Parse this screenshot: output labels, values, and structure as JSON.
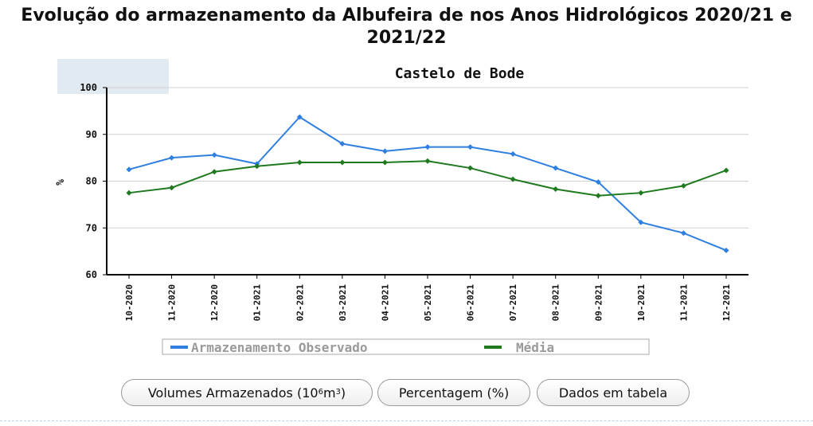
{
  "page": {
    "title": "Evolução do armazenamento da Albufeira de nos Anos Hidrológicos 2020/21 e 2021/22"
  },
  "chart_data": {
    "type": "line",
    "title": "Castelo de Bode",
    "ylabel": "%",
    "xlabel": "",
    "ylim": [
      60,
      100
    ],
    "yticks": [
      60,
      70,
      80,
      90,
      100
    ],
    "grid": true,
    "legend_position": "bottom",
    "categories": [
      "10-2020",
      "11-2020",
      "12-2020",
      "01-2021",
      "02-2021",
      "03-2021",
      "04-2021",
      "05-2021",
      "06-2021",
      "07-2021",
      "08-2021",
      "09-2021",
      "10-2021",
      "11-2021",
      "12-2021"
    ],
    "series": [
      {
        "name": "Armazenamento Observado",
        "color": "#2f7fe0",
        "values": [
          82.5,
          85.0,
          85.6,
          83.7,
          93.7,
          88.0,
          86.4,
          87.3,
          87.3,
          85.8,
          82.8,
          79.8,
          71.2,
          68.9,
          65.2
        ]
      },
      {
        "name": "Média",
        "color": "#1f7a1f",
        "values": [
          77.5,
          78.6,
          82.0,
          83.2,
          84.0,
          84.0,
          84.0,
          84.3,
          82.8,
          80.4,
          78.3,
          76.9,
          77.5,
          79.0,
          82.3
        ]
      }
    ]
  },
  "buttons": {
    "volumes_label": "Volumes Armazenados (10",
    "volumes_sup1": "6",
    "volumes_mid": " m",
    "volumes_sup2": "3",
    "volumes_end": ")",
    "percent_label": "Percentagem (%)",
    "table_label": "Dados em tabela"
  }
}
